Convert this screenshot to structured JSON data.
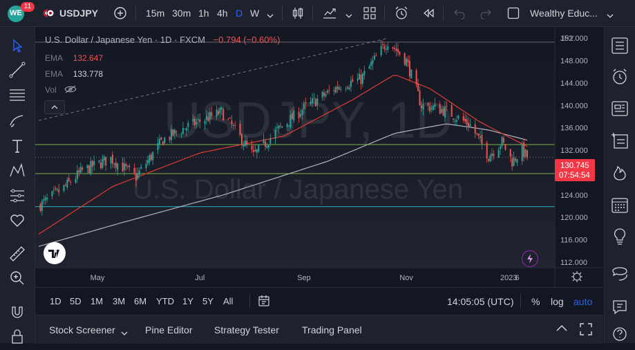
{
  "header": {
    "badge_count": "11",
    "symbol": "USDJPY",
    "timeframes": [
      "15m",
      "30m",
      "1h",
      "4h",
      "D",
      "W"
    ],
    "active_timeframe": "D",
    "layout_name": "Wealthy Educ..."
  },
  "legend": {
    "title": "U.S. Dollar / Japanese Yen · 1D · FXCM",
    "change": "−0.794 (−0.60%)",
    "ema1_label": "EMA",
    "ema1_value": "132.647",
    "ema2_label": "EMA",
    "ema2_value": "133.778",
    "vol_label": "Vol"
  },
  "watermark": {
    "symbol": "USDJPY, 1D",
    "name": "U.S. Dollar / Japanese Yen"
  },
  "price_axis": {
    "currency": "JPY",
    "ticks": [
      "152.000",
      "148.000",
      "144.000",
      "140.000",
      "136.000",
      "132.000",
      "128.000",
      "124.000",
      "120.000",
      "116.000",
      "112.000"
    ],
    "current_price": "130.745",
    "countdown": "07:54:54"
  },
  "time_axis": {
    "ticks": [
      "May",
      "Jul",
      "Sep",
      "Nov",
      "2023",
      "6"
    ]
  },
  "range_bar": {
    "ranges": [
      "1D",
      "5D",
      "1M",
      "3M",
      "6M",
      "YTD",
      "1Y",
      "5Y",
      "All"
    ],
    "clock": "14:05:05 (UTC)",
    "percent": "%",
    "log": "log",
    "auto": "auto"
  },
  "bottom_panel": {
    "tabs": [
      "Stock Screener",
      "Pine Editor",
      "Strategy Tester",
      "Trading Panel"
    ]
  },
  "colors": {
    "up": "#26a69a",
    "down": "#ef5350",
    "ema_fast": "#e53935",
    "ema_slow": "#b2b5be",
    "hline_green": "#8bc34a",
    "hline_teal": "#26c6da",
    "current_tag": "#f23645",
    "accent": "#2962ff"
  },
  "chart_data": {
    "type": "candlestick",
    "x_range": [
      "2022-03-27",
      "2023-01-12"
    ],
    "ylim": [
      111,
      154
    ],
    "horizontal_levels": [
      {
        "price": 133.0,
        "color": "green"
      },
      {
        "price": 127.8,
        "color": "green"
      },
      {
        "price": 121.9,
        "color": "teal"
      },
      {
        "price": 151.3,
        "color": "gray"
      }
    ],
    "close_path": [
      [
        "2022-03-27",
        122.0
      ],
      [
        "2022-04-10",
        125.0
      ],
      [
        "2022-04-22",
        128.3
      ],
      [
        "2022-05-09",
        130.5
      ],
      [
        "2022-05-24",
        127.2
      ],
      [
        "2022-06-09",
        133.8
      ],
      [
        "2022-06-22",
        136.0
      ],
      [
        "2022-07-14",
        138.8
      ],
      [
        "2022-08-02",
        131.0
      ],
      [
        "2022-08-16",
        135.5
      ],
      [
        "2022-09-01",
        139.5
      ],
      [
        "2022-09-22",
        143.5
      ],
      [
        "2022-10-05",
        144.7
      ],
      [
        "2022-10-21",
        151.5
      ],
      [
        "2022-11-01",
        148.0
      ],
      [
        "2022-11-10",
        140.0
      ],
      [
        "2022-11-25",
        139.0
      ],
      [
        "2022-12-09",
        136.5
      ],
      [
        "2022-12-20",
        131.0
      ],
      [
        "2022-12-28",
        133.5
      ],
      [
        "2023-01-03",
        130.0
      ],
      [
        "2023-01-09",
        132.0
      ],
      [
        "2023-01-12",
        130.745
      ]
    ],
    "ema_fast": [
      [
        "2022-03-27",
        117.0
      ],
      [
        "2022-05-10",
        125.5
      ],
      [
        "2022-07-01",
        131.5
      ],
      [
        "2022-08-20",
        134.5
      ],
      [
        "2022-09-30",
        141.0
      ],
      [
        "2022-10-25",
        145.5
      ],
      [
        "2022-11-15",
        143.0
      ],
      [
        "2022-12-15",
        137.0
      ],
      [
        "2023-01-12",
        132.647
      ]
    ],
    "ema_slow": [
      [
        "2022-03-27",
        114.8
      ],
      [
        "2022-05-15",
        119.0
      ],
      [
        "2022-07-15",
        124.0
      ],
      [
        "2022-09-15",
        130.0
      ],
      [
        "2022-10-25",
        135.0
      ],
      [
        "2022-11-25",
        136.7
      ],
      [
        "2022-12-20",
        135.6
      ],
      [
        "2023-01-12",
        133.778
      ]
    ],
    "trend_line": [
      [
        "2022-03-27",
        137.3
      ],
      [
        "2022-10-21",
        152.0
      ]
    ]
  }
}
